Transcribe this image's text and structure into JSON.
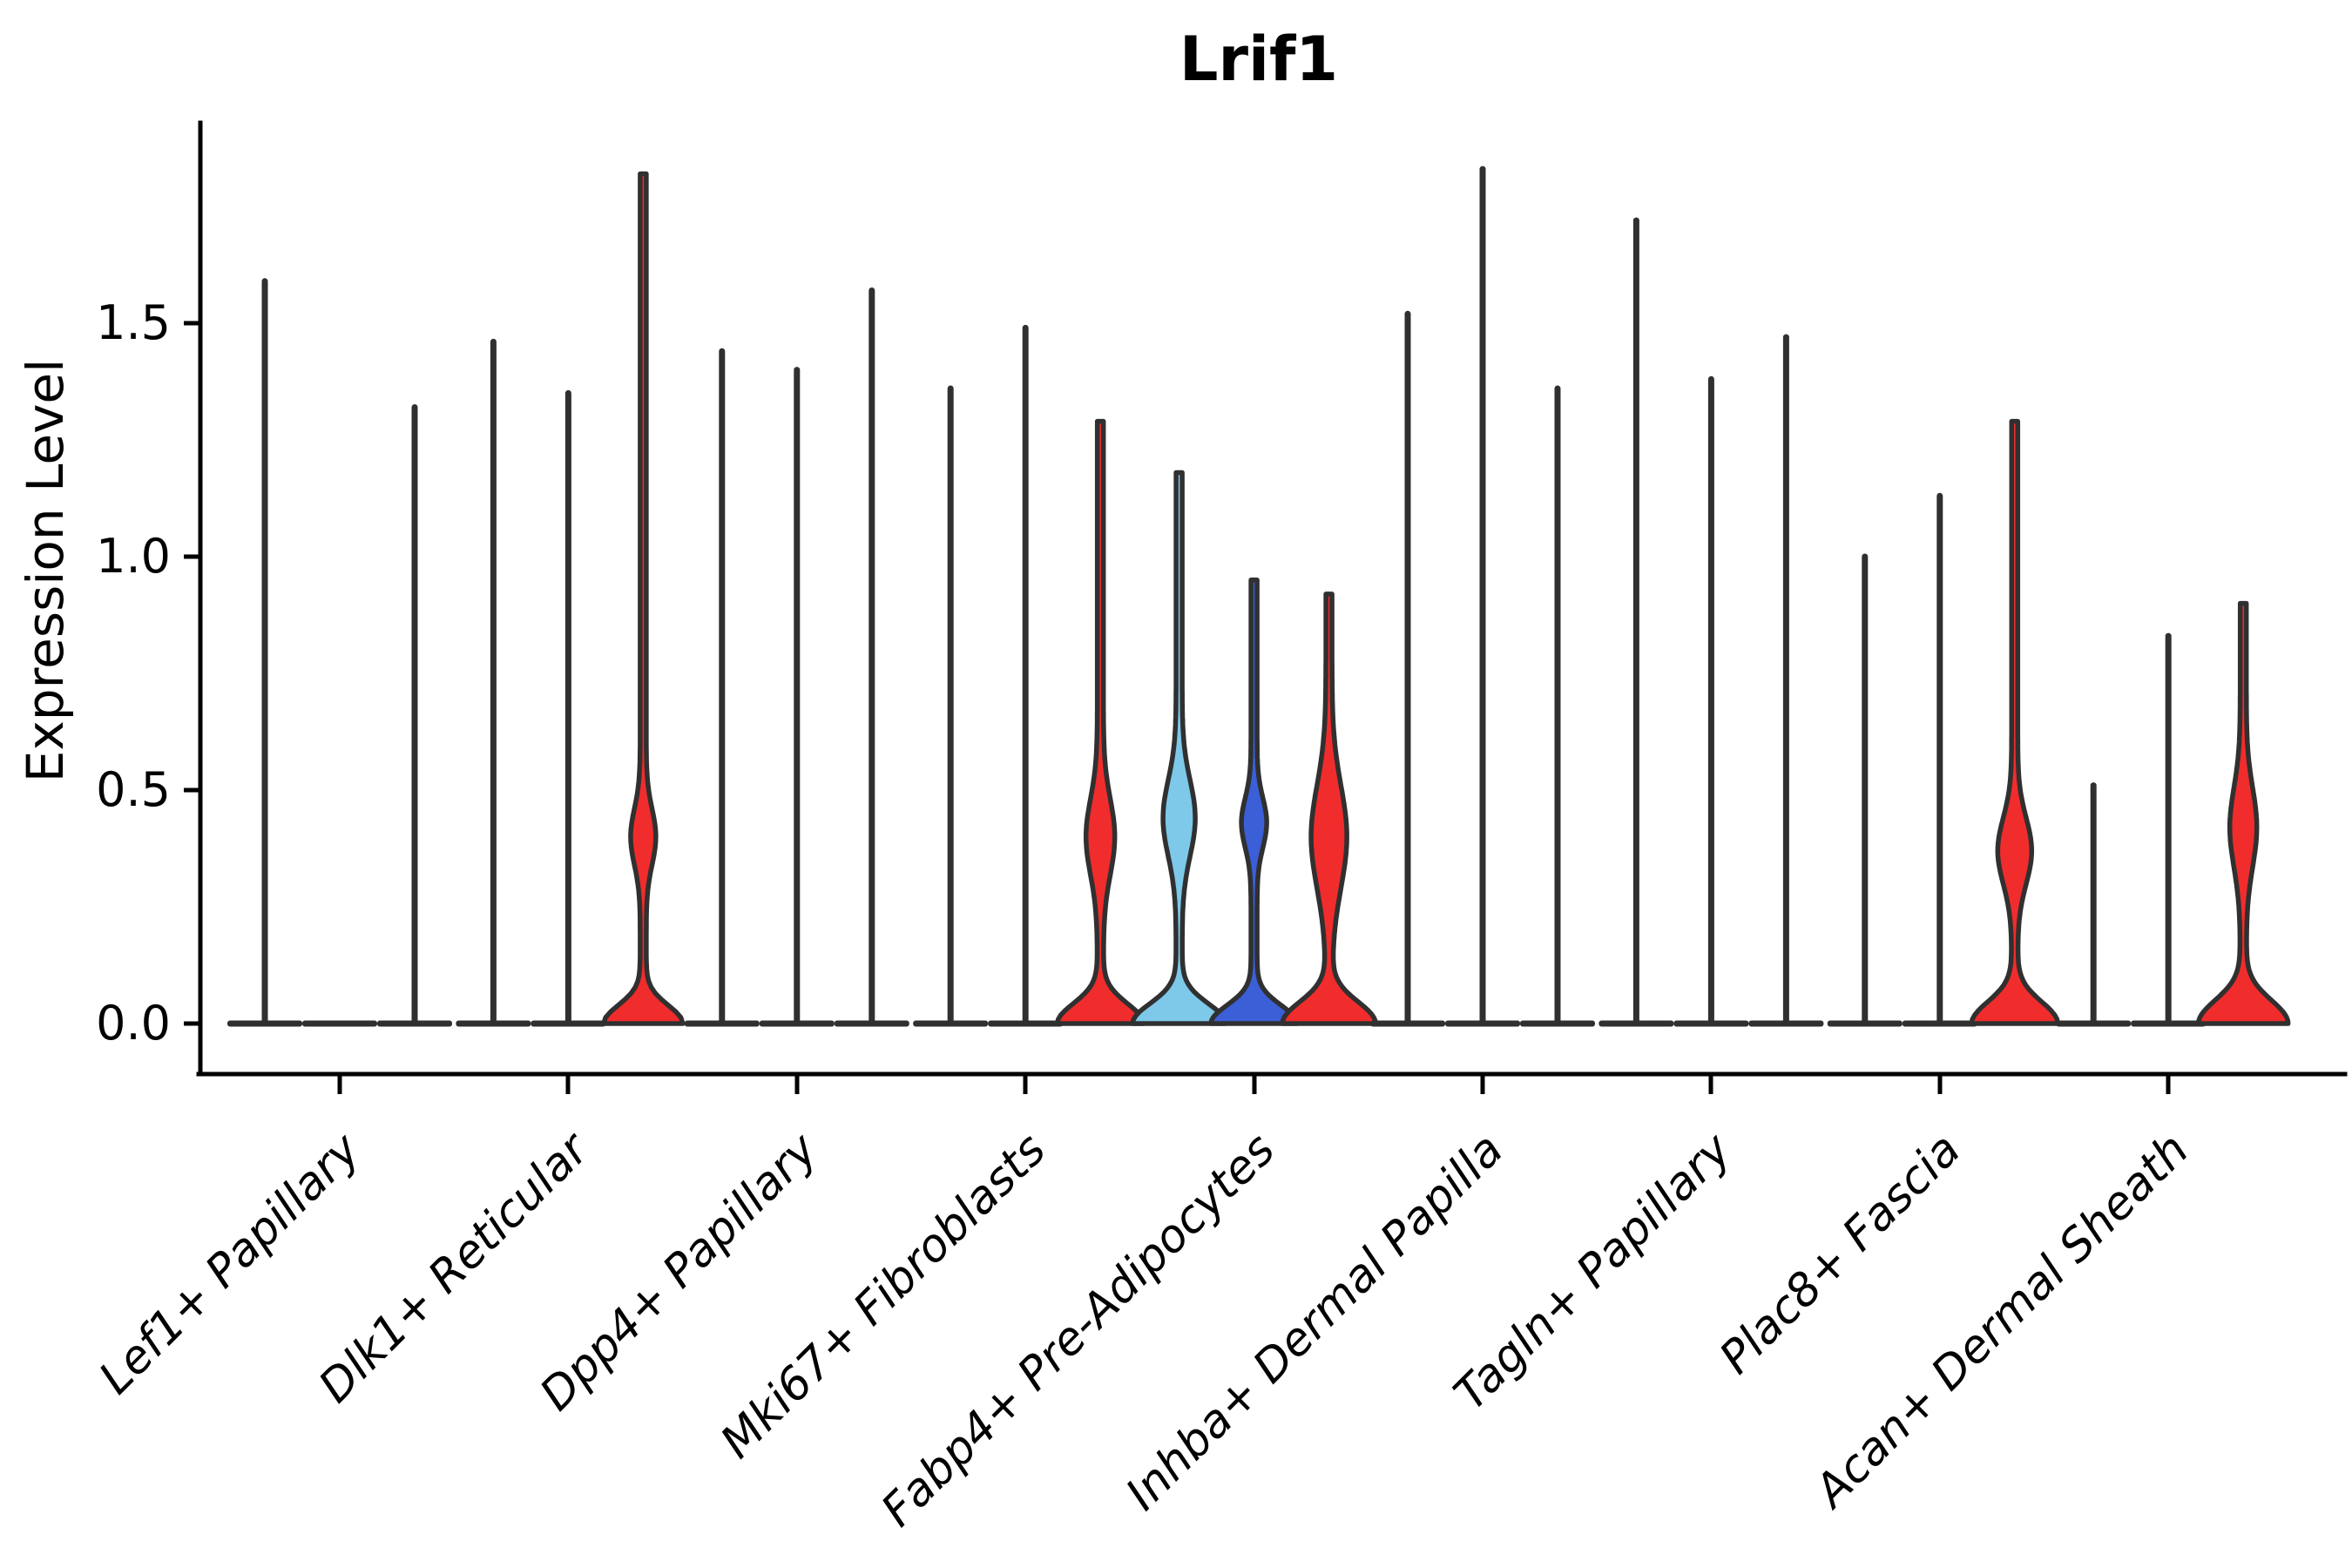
{
  "chart_data": {
    "type": "violin",
    "title": "Lrif1",
    "xlabel": "",
    "ylabel": "Expression Level",
    "ylim": [
      0,
      1.93
    ],
    "yticks": [
      0.0,
      0.5,
      1.0,
      1.5
    ],
    "ytick_labels": [
      "0.0",
      "0.5",
      "1.0",
      "1.5"
    ],
    "grid": false,
    "legend": "none",
    "violins_per_category": 3,
    "categories": [
      "Lef1+ Papillary",
      "Dlk1+ Reticular",
      "Dpp4+ Papillary",
      "Mki67+ Fibroblasts",
      "Fabp4+ Pre-Adipocytes",
      "Inhba+ Dermal Papilla",
      "Tagln+ Papillary",
      "Plac8+ Fascia",
      "Acan+ Dermal Sheath"
    ],
    "palette": {
      "thin": "#303030",
      "red": "#f12c2c",
      "skyblue": "#7ec8e9",
      "royalblue": "#3b5fd7",
      "outline": "#303030"
    },
    "violins": [
      {
        "category": "Lef1+ Papillary",
        "samples": [
          {
            "max": 1.59,
            "color": "thin"
          },
          {
            "max": 0.0,
            "color": "thin"
          },
          {
            "max": 1.32,
            "color": "thin"
          }
        ]
      },
      {
        "category": "Dlk1+ Reticular",
        "samples": [
          {
            "max": 1.46,
            "color": "thin"
          },
          {
            "max": 1.35,
            "color": "thin"
          },
          {
            "max": 1.82,
            "color": "red",
            "base": {
              "hw": 42,
              "sigma": 0.055
            },
            "bulge": {
              "center": 0.4,
              "hw": 11,
              "sigma": 0.085
            }
          }
        ]
      },
      {
        "category": "Dpp4+ Papillary",
        "samples": [
          {
            "max": 1.44,
            "color": "thin"
          },
          {
            "max": 1.4,
            "color": "thin"
          },
          {
            "max": 1.57,
            "color": "thin"
          }
        ]
      },
      {
        "category": "Mki67+ Fibroblasts",
        "samples": [
          {
            "max": 1.36,
            "color": "thin"
          },
          {
            "max": 1.49,
            "color": "thin"
          },
          {
            "max": 1.29,
            "color": "red",
            "base": {
              "hw": 46,
              "sigma": 0.06
            },
            "bulge": {
              "center": 0.4,
              "hw": 13,
              "sigma": 0.115
            }
          }
        ]
      },
      {
        "category": "Fabp4+ Pre-Adipocytes",
        "samples": [
          {
            "max": 1.18,
            "color": "skyblue",
            "base": {
              "hw": 50,
              "sigma": 0.06
            },
            "bulge": {
              "center": 0.44,
              "hw": 15,
              "sigma": 0.115
            }
          },
          {
            "max": 0.95,
            "color": "royalblue",
            "base": {
              "hw": 46,
              "sigma": 0.055
            },
            "bulge": {
              "center": 0.43,
              "hw": 11,
              "sigma": 0.075
            }
          },
          {
            "max": 0.92,
            "color": "red",
            "base": {
              "hw": 50,
              "sigma": 0.065
            },
            "bulge": {
              "center": 0.4,
              "hw": 17,
              "sigma": 0.155
            }
          }
        ]
      },
      {
        "category": "Inhba+ Dermal Papilla",
        "samples": [
          {
            "max": 1.52,
            "color": "thin"
          },
          {
            "max": 1.83,
            "color": "thin"
          },
          {
            "max": 1.36,
            "color": "thin"
          }
        ]
      },
      {
        "category": "Tagln+ Papillary",
        "samples": [
          {
            "max": 1.72,
            "color": "thin"
          },
          {
            "max": 1.38,
            "color": "thin"
          },
          {
            "max": 1.47,
            "color": "thin"
          }
        ]
      },
      {
        "category": "Plac8+ Fascia",
        "samples": [
          {
            "max": 1.0,
            "color": "thin"
          },
          {
            "max": 1.13,
            "color": "thin"
          },
          {
            "max": 1.29,
            "color": "red",
            "base": {
              "hw": 46,
              "sigma": 0.065
            },
            "bulge": {
              "center": 0.37,
              "hw": 16,
              "sigma": 0.1
            }
          }
        ]
      },
      {
        "category": "Acan+ Dermal Sheath",
        "samples": [
          {
            "max": 0.51,
            "color": "thin"
          },
          {
            "max": 0.83,
            "color": "thin"
          },
          {
            "max": 0.9,
            "color": "red",
            "base": {
              "hw": 48,
              "sigma": 0.07
            },
            "bulge": {
              "center": 0.42,
              "hw": 12,
              "sigma": 0.12
            }
          }
        ]
      }
    ]
  }
}
